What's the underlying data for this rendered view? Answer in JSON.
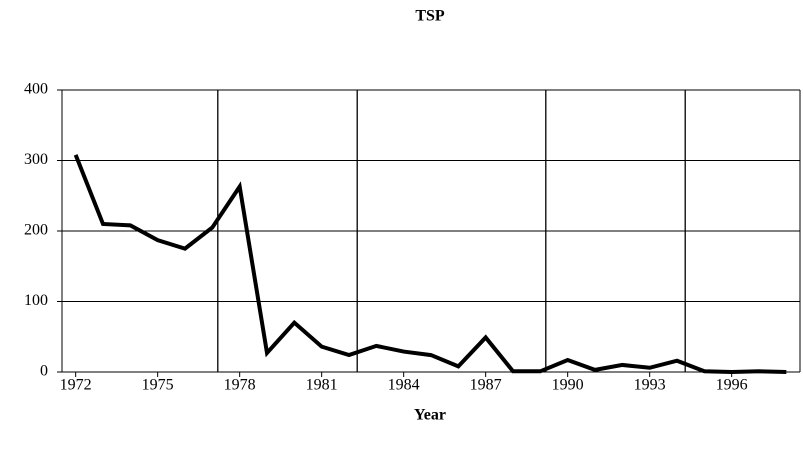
{
  "chart_data": {
    "type": "line",
    "title": "TSP",
    "x_label": "Year",
    "x": [
      1972,
      1973,
      1974,
      1975,
      1976,
      1977,
      1978,
      1979,
      1980,
      1981,
      1982,
      1983,
      1984,
      1985,
      1986,
      1987,
      1988,
      1989,
      1990,
      1991,
      1992,
      1993,
      1994,
      1995,
      1996,
      1997,
      1998
    ],
    "series": [
      {
        "name": "TSP",
        "color": "#000000",
        "values": [
          308,
          210,
          208,
          187,
          175,
          205,
          263,
          27,
          70,
          36,
          24,
          37,
          29,
          24,
          8,
          49,
          1,
          1,
          17,
          3,
          10,
          6,
          16,
          1,
          0,
          1,
          0
        ]
      }
    ],
    "xlim": [
      1971.5,
      1998.5
    ],
    "xticks": [
      1972,
      1975,
      1978,
      1981,
      1984,
      1987,
      1990,
      1993,
      1996
    ],
    "ylim": [
      0,
      400
    ],
    "yticks": [
      0,
      100,
      200,
      300,
      400
    ],
    "grid": true,
    "vlines": [
      1977.2,
      1982.3,
      1989.2,
      1994.3
    ]
  }
}
